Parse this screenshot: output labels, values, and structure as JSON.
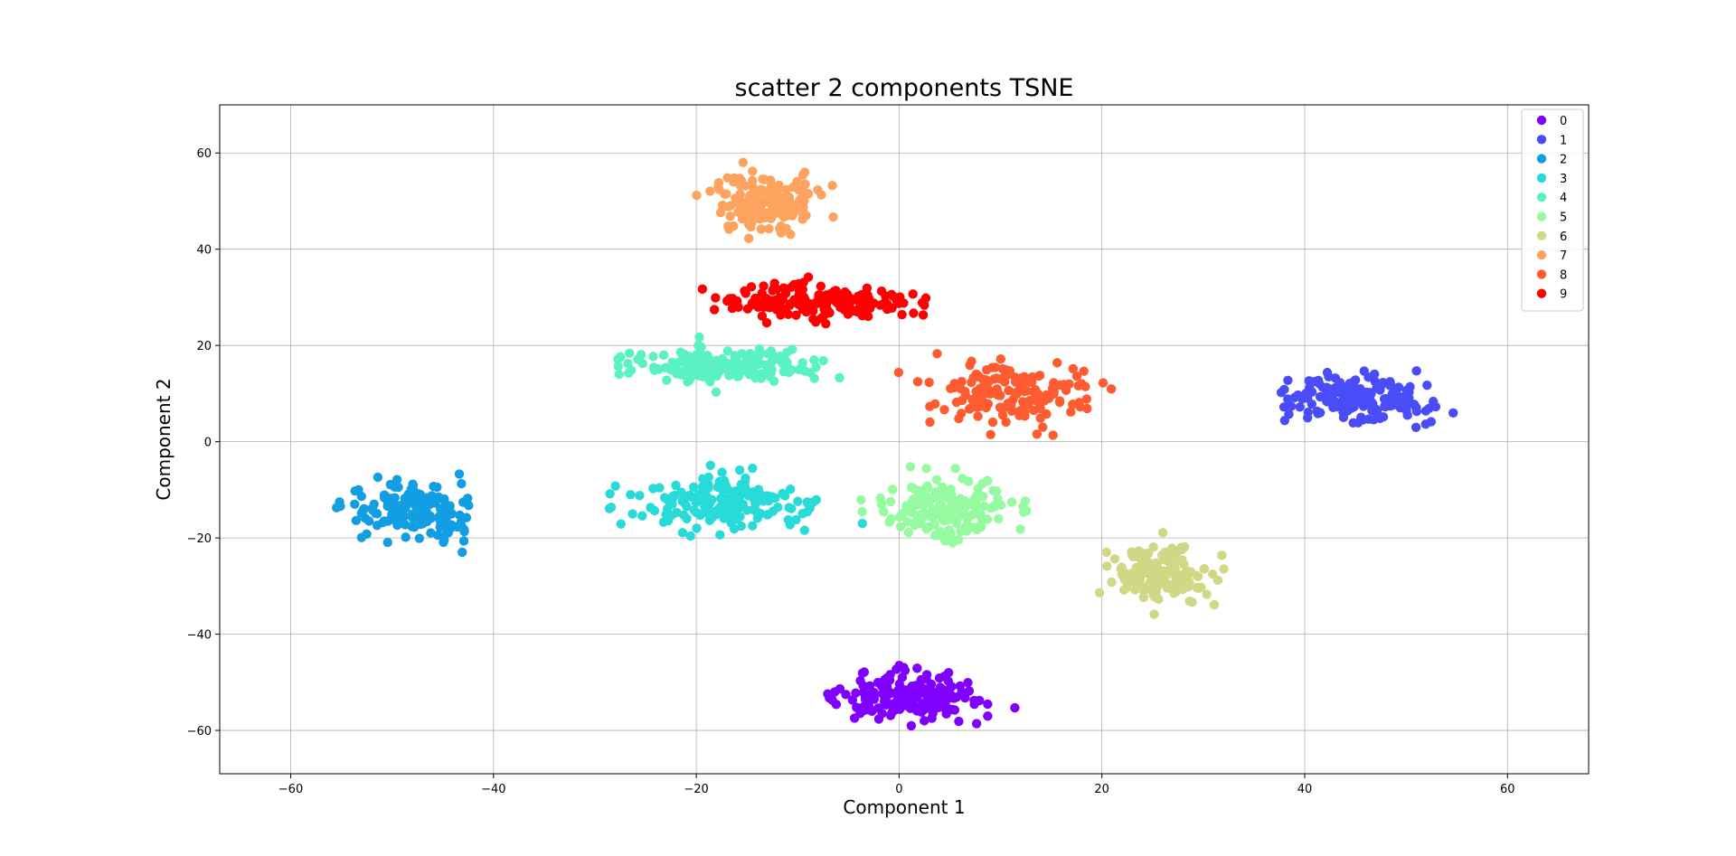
{
  "chart_data": {
    "type": "scatter",
    "title": "scatter 2 components TSNE",
    "xlabel": "Component 1",
    "ylabel": "Component 2",
    "xlim": [
      -67,
      68
    ],
    "ylim": [
      -69,
      70
    ],
    "xticks": [
      -60,
      -40,
      -20,
      0,
      20,
      40,
      60
    ],
    "yticks": [
      -60,
      -40,
      -20,
      0,
      20,
      40,
      60
    ],
    "xtick_labels": [
      "−60",
      "−40",
      "−20",
      "0",
      "20",
      "40",
      "60"
    ],
    "ytick_labels": [
      "−60",
      "−40",
      "−20",
      "0",
      "20",
      "40",
      "60"
    ],
    "grid": true,
    "legend_position": "top-right",
    "clusters": [
      {
        "name": "0",
        "color": "#8000ff",
        "center": [
          1,
          -53
        ],
        "spread": [
          8,
          5
        ],
        "count": 180
      },
      {
        "name": "1",
        "color": "#4a4cf8",
        "center": [
          45,
          9
        ],
        "spread": [
          8,
          5
        ],
        "count": 170
      },
      {
        "name": "2",
        "color": "#139ee4",
        "center": [
          -48,
          -14
        ],
        "spread": [
          7,
          6
        ],
        "count": 160
      },
      {
        "name": "3",
        "color": "#29dbd8",
        "center": [
          -17,
          -13
        ],
        "spread": [
          9,
          6
        ],
        "count": 180
      },
      {
        "name": "4",
        "color": "#5bf2c3",
        "center": [
          -17,
          16
        ],
        "spread": [
          10,
          4
        ],
        "count": 170
      },
      {
        "name": "5",
        "color": "#95faa0",
        "center": [
          5,
          -14
        ],
        "spread": [
          7,
          7
        ],
        "count": 170
      },
      {
        "name": "6",
        "color": "#d1d885",
        "center": [
          26,
          -28
        ],
        "spread": [
          5,
          6
        ],
        "count": 150
      },
      {
        "name": "7",
        "color": "#fea35f",
        "center": [
          -13,
          50
        ],
        "spread": [
          6,
          6
        ],
        "count": 160
      },
      {
        "name": "8",
        "color": "#ff5b31",
        "center": [
          12,
          10
        ],
        "spread": [
          9,
          7
        ],
        "count": 150
      },
      {
        "name": "9",
        "color": "#ff0000",
        "center": [
          -8,
          29
        ],
        "spread": [
          10,
          4
        ],
        "count": 170
      }
    ]
  }
}
